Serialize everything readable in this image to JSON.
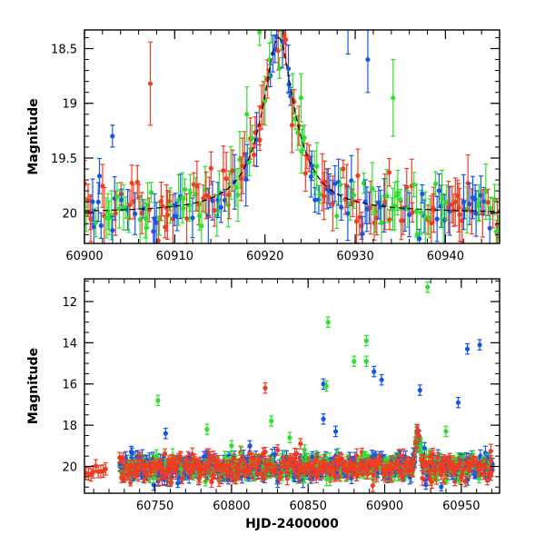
{
  "chart_data": [
    {
      "type": "scatter",
      "panel": "top",
      "xlim": [
        60900,
        60946
      ],
      "ylim": [
        20.28,
        18.33
      ],
      "y_inverted": true,
      "xticks": [
        60900,
        60910,
        60920,
        60930,
        60940
      ],
      "yticks": [
        18.5,
        19,
        19.5,
        20
      ],
      "xlabel": "",
      "ylabel": "Magnitude",
      "series_colors": {
        "green": "#2ee02e",
        "blue": "#1656e6",
        "red": "#f23c22"
      },
      "model_curve": {
        "style": "dashed",
        "color": "#000000",
        "peak_x": 60921.5,
        "peak_mag": 18.4,
        "baseline_mag": 20.0,
        "tE_days": 2.6
      },
      "highlight_points": [
        {
          "series": "green",
          "x": 60919.4,
          "y": 18.35,
          "err": 0.12
        },
        {
          "series": "green",
          "x": 60920.5,
          "y": 18.6,
          "err": 0.15
        },
        {
          "series": "red",
          "x": 60922.1,
          "y": 18.38,
          "err": 0.2
        },
        {
          "series": "red",
          "x": 60907.3,
          "y": 18.82,
          "err": 0.38
        },
        {
          "series": "blue",
          "x": 60903.1,
          "y": 19.3,
          "err": 0.1
        },
        {
          "series": "blue",
          "x": 60929.2,
          "y": 18.3,
          "err": 0.25
        },
        {
          "series": "blue",
          "x": 60931.4,
          "y": 18.6,
          "err": 0.3
        },
        {
          "series": "green",
          "x": 60934.2,
          "y": 18.95,
          "err": 0.35
        },
        {
          "series": "green",
          "x": 60924.0,
          "y": 18.95,
          "err": 0.22
        },
        {
          "series": "red",
          "x": 60923.0,
          "y": 19.2,
          "err": 0.25
        },
        {
          "series": "green",
          "x": 60918.0,
          "y": 19.1,
          "err": 0.25
        }
      ]
    },
    {
      "type": "scatter",
      "panel": "bottom",
      "xlim": [
        60704,
        60975
      ],
      "ylim": [
        21.3,
        10.9
      ],
      "y_inverted": true,
      "xticks": [
        60750,
        60800,
        60850,
        60900,
        60950
      ],
      "yticks": [
        12,
        14,
        16,
        18,
        20
      ],
      "xlabel": "HJD-2400000",
      "ylabel": "Magnitude",
      "series_colors": {
        "green": "#2ee02e",
        "blue": "#1656e6",
        "red": "#f23c22"
      },
      "outliers": [
        {
          "series": "green",
          "x": 60928,
          "y": 11.3
        },
        {
          "series": "green",
          "x": 60863,
          "y": 13.0
        },
        {
          "series": "green",
          "x": 60888,
          "y": 13.9
        },
        {
          "series": "green",
          "x": 60880,
          "y": 14.9
        },
        {
          "series": "green",
          "x": 60888,
          "y": 14.9
        },
        {
          "series": "blue",
          "x": 60954,
          "y": 14.3
        },
        {
          "series": "blue",
          "x": 60962,
          "y": 14.1
        },
        {
          "series": "blue",
          "x": 60893,
          "y": 15.4
        },
        {
          "series": "blue",
          "x": 60898,
          "y": 15.8
        },
        {
          "series": "blue",
          "x": 60860,
          "y": 16.0
        },
        {
          "series": "green",
          "x": 60862,
          "y": 16.1
        },
        {
          "series": "red",
          "x": 60822,
          "y": 16.2
        },
        {
          "series": "blue",
          "x": 60923,
          "y": 16.3
        },
        {
          "series": "green",
          "x": 60752,
          "y": 16.8
        },
        {
          "series": "blue",
          "x": 60948,
          "y": 16.9
        },
        {
          "series": "blue",
          "x": 60860,
          "y": 17.7
        },
        {
          "series": "green",
          "x": 60826,
          "y": 17.8
        },
        {
          "series": "green",
          "x": 60784,
          "y": 18.2
        },
        {
          "series": "blue",
          "x": 60757,
          "y": 18.4
        },
        {
          "series": "green",
          "x": 60838,
          "y": 18.6
        },
        {
          "series": "blue",
          "x": 60868,
          "y": 18.3
        },
        {
          "series": "red",
          "x": 60845,
          "y": 18.9
        },
        {
          "series": "green",
          "x": 60800,
          "y": 19.0
        },
        {
          "series": "blue",
          "x": 60812,
          "y": 19.0
        },
        {
          "series": "green",
          "x": 60940,
          "y": 18.3
        }
      ],
      "segments_note": "dense photometry near magnitude 20 from HJD 60727 to 60970, plus sparse red points near 60705-60718"
    }
  ]
}
